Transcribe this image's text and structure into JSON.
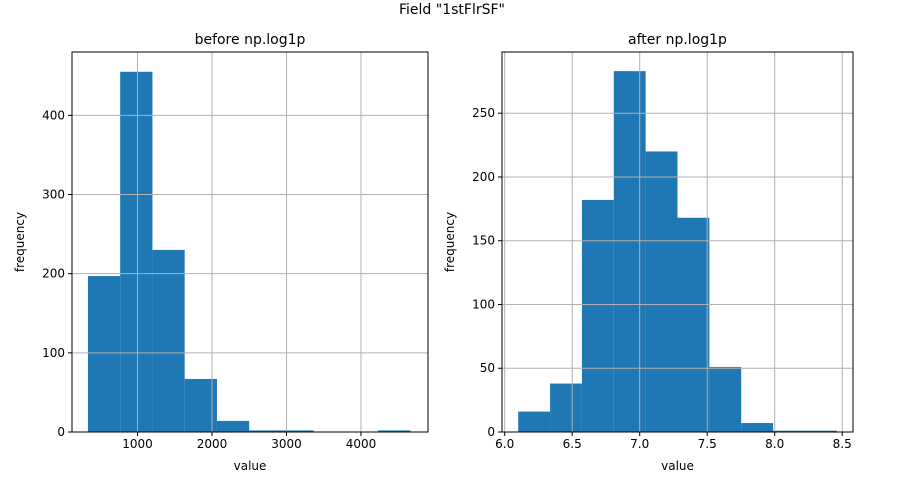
{
  "figure": {
    "suptitle": "Field \"1stFlrSF\""
  },
  "chart_data": [
    {
      "type": "bar",
      "title": "before np.log1p",
      "xlabel": "value",
      "ylabel": "frequency",
      "grid": true,
      "bar_color": "#1f77b4",
      "xlim": [
        120,
        4900
      ],
      "ylim": [
        0,
        480
      ],
      "xticks": [
        1000,
        2000,
        3000,
        4000
      ],
      "xtick_labels": [
        "1000",
        "2000",
        "3000",
        "4000"
      ],
      "yticks": [
        0,
        100,
        200,
        300,
        400
      ],
      "ytick_labels": [
        "0",
        "100",
        "200",
        "300",
        "400"
      ],
      "bins": [
        {
          "x0": 334,
          "x1": 767,
          "value": 197
        },
        {
          "x0": 767,
          "x1": 1200,
          "value": 455
        },
        {
          "x0": 1200,
          "x1": 1633,
          "value": 230
        },
        {
          "x0": 1633,
          "x1": 2066,
          "value": 67
        },
        {
          "x0": 2066,
          "x1": 2499,
          "value": 14
        },
        {
          "x0": 2499,
          "x1": 2932,
          "value": 2
        },
        {
          "x0": 2932,
          "x1": 3365,
          "value": 2
        },
        {
          "x0": 3365,
          "x1": 3798,
          "value": 0
        },
        {
          "x0": 3798,
          "x1": 4231,
          "value": 0
        },
        {
          "x0": 4231,
          "x1": 4664,
          "value": 2
        }
      ]
    },
    {
      "type": "bar",
      "title": "after np.log1p",
      "xlabel": "value",
      "ylabel": "frequency",
      "grid": true,
      "bar_color": "#1f77b4",
      "xlim": [
        5.98,
        8.58
      ],
      "ylim": [
        0,
        298
      ],
      "xticks": [
        6.0,
        6.5,
        7.0,
        7.5,
        8.0,
        8.5
      ],
      "xtick_labels": [
        "6.0",
        "6.5",
        "7.0",
        "7.5",
        "8.0",
        "8.5"
      ],
      "yticks": [
        0,
        50,
        100,
        150,
        200,
        250
      ],
      "ytick_labels": [
        "0",
        "50",
        "100",
        "150",
        "200",
        "250"
      ],
      "bins": [
        {
          "x0": 6.1,
          "x1": 6.336,
          "value": 16
        },
        {
          "x0": 6.336,
          "x1": 6.572,
          "value": 38
        },
        {
          "x0": 6.572,
          "x1": 6.808,
          "value": 182
        },
        {
          "x0": 6.808,
          "x1": 7.044,
          "value": 283
        },
        {
          "x0": 7.044,
          "x1": 7.28,
          "value": 220
        },
        {
          "x0": 7.28,
          "x1": 7.516,
          "value": 168
        },
        {
          "x0": 7.516,
          "x1": 7.752,
          "value": 51
        },
        {
          "x0": 7.752,
          "x1": 7.988,
          "value": 7
        },
        {
          "x0": 7.988,
          "x1": 8.224,
          "value": 1
        },
        {
          "x0": 8.224,
          "x1": 8.46,
          "value": 1
        }
      ]
    }
  ]
}
